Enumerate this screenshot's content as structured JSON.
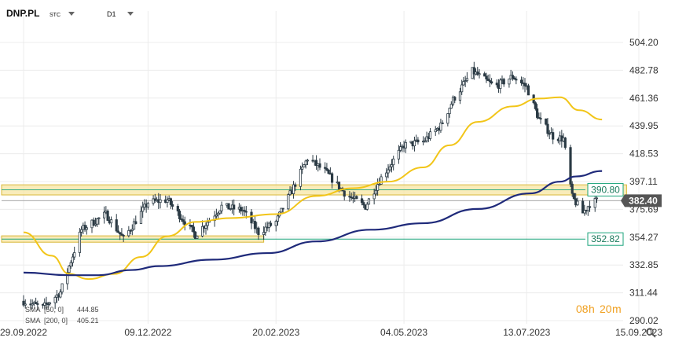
{
  "header": {
    "symbol": "DNP.PL",
    "exchange": "STC",
    "interval": "D1"
  },
  "timer": {
    "hours": "08",
    "h_unit": "h",
    "minutes": "20",
    "m_unit": "m"
  },
  "colors": {
    "candle": "#2b3a44",
    "sma50": "#f2c518",
    "sma200": "#1f2a7a",
    "zone_fill": "#f7e6a3",
    "zone_border": "#d9b83a",
    "level_390": "#1aa37a",
    "level_352": "#1aa37a",
    "last_price": "#555555",
    "timer": "#f0a020"
  },
  "legend": {
    "sma50": {
      "label": "SMA",
      "params": "[50, 0]",
      "value": "444.85"
    },
    "sma200": {
      "label": "SMA",
      "params": "[200, 0]",
      "value": "405.21"
    }
  },
  "chart_data": {
    "type": "candlestick",
    "x_ticks": [
      "29.09.2022",
      "09.12.2022",
      "20.02.2023",
      "04.05.2023",
      "13.07.2023",
      "15.09.2023"
    ],
    "y_ticks": [
      "504.20",
      "482.78",
      "461.36",
      "439.95",
      "418.53",
      "397.11",
      "375.69",
      "354.27",
      "332.85",
      "311.44",
      "290.02"
    ],
    "ylim": [
      290.02,
      504.2
    ],
    "x_range_days": [
      "2022-09-29",
      "2023-09-15"
    ],
    "price_labels": [
      {
        "text": "390.80",
        "value": 390.8,
        "role": "resistance-zone"
      },
      {
        "text": "382.40",
        "value": 382.4,
        "role": "last-price"
      },
      {
        "text": "352.82",
        "value": 352.82,
        "role": "support"
      }
    ],
    "zones": [
      {
        "name": "upper-zone",
        "low": 386.8,
        "high": 394.6,
        "from": "2022-09-29",
        "to": "2023-09-08"
      },
      {
        "name": "lower-zone",
        "low": 350.4,
        "high": 355.3,
        "from": "2022-09-29",
        "to": "2023-02-13"
      }
    ],
    "close_path": [
      [
        "2022-09-29",
        305
      ],
      [
        "2022-10-10",
        300
      ],
      [
        "2022-10-20",
        312
      ],
      [
        "2022-11-01",
        360
      ],
      [
        "2022-11-15",
        372
      ],
      [
        "2022-11-25",
        353
      ],
      [
        "2022-12-09",
        381
      ],
      [
        "2022-12-20",
        383
      ],
      [
        "2023-01-05",
        356
      ],
      [
        "2023-01-20",
        378
      ],
      [
        "2023-02-01",
        375
      ],
      [
        "2023-02-10",
        358
      ],
      [
        "2023-02-20",
        366
      ],
      [
        "2023-03-01",
        390
      ],
      [
        "2023-03-10",
        415
      ],
      [
        "2023-03-20",
        405
      ],
      [
        "2023-04-01",
        387
      ],
      [
        "2023-04-12",
        378
      ],
      [
        "2023-04-20",
        398
      ],
      [
        "2023-05-04",
        425
      ],
      [
        "2023-05-15",
        428
      ],
      [
        "2023-05-25",
        440
      ],
      [
        "2023-06-01",
        460
      ],
      [
        "2023-06-12",
        482
      ],
      [
        "2023-06-25",
        470
      ],
      [
        "2023-07-05",
        478
      ],
      [
        "2023-07-13",
        470
      ],
      [
        "2023-07-20",
        445
      ],
      [
        "2023-07-28",
        432
      ],
      [
        "2023-08-03",
        430
      ],
      [
        "2023-08-08",
        385
      ],
      [
        "2023-08-14",
        373
      ],
      [
        "2023-08-18",
        380
      ],
      [
        "2023-08-22",
        382.4
      ]
    ],
    "sma50": [
      [
        "2022-09-29",
        358
      ],
      [
        "2022-10-15",
        340
      ],
      [
        "2022-10-25",
        326
      ],
      [
        "2022-11-05",
        322
      ],
      [
        "2022-11-20",
        326
      ],
      [
        "2022-12-05",
        339
      ],
      [
        "2022-12-20",
        355
      ],
      [
        "2023-01-05",
        366
      ],
      [
        "2023-01-25",
        369
      ],
      [
        "2023-02-20",
        372
      ],
      [
        "2023-03-15",
        386
      ],
      [
        "2023-04-05",
        392
      ],
      [
        "2023-04-25",
        397
      ],
      [
        "2023-05-15",
        408
      ],
      [
        "2023-05-30",
        425
      ],
      [
        "2023-06-15",
        443
      ],
      [
        "2023-07-05",
        455
      ],
      [
        "2023-07-20",
        461
      ],
      [
        "2023-08-01",
        462
      ],
      [
        "2023-08-12",
        452
      ],
      [
        "2023-08-25",
        444.85
      ]
    ],
    "sma200": [
      [
        "2022-09-29",
        327
      ],
      [
        "2022-10-25",
        325
      ],
      [
        "2022-11-10",
        325
      ],
      [
        "2022-11-30",
        329
      ],
      [
        "2022-12-15",
        332
      ],
      [
        "2023-01-15",
        337
      ],
      [
        "2023-02-15",
        342
      ],
      [
        "2023-03-15",
        351
      ],
      [
        "2023-04-15",
        360
      ],
      [
        "2023-05-15",
        365
      ],
      [
        "2023-06-15",
        376
      ],
      [
        "2023-07-15",
        388
      ],
      [
        "2023-08-01",
        397
      ],
      [
        "2023-08-10",
        401
      ],
      [
        "2023-08-25",
        405.21
      ]
    ]
  }
}
